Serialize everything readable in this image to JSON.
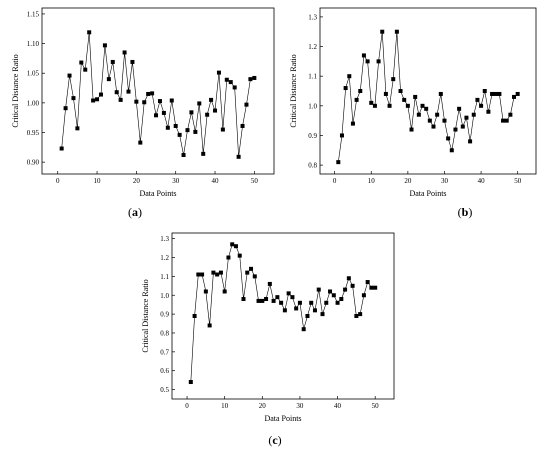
{
  "chart_data": [
    {
      "type": "line",
      "panel_label": "a",
      "xlabel": "Data Points",
      "ylabel": "Critical Distance Ratio",
      "xlim": [
        -4,
        55
      ],
      "ylim": [
        0.88,
        1.16
      ],
      "xticks": [
        0,
        10,
        20,
        30,
        40,
        50
      ],
      "yticks": [
        0.9,
        0.95,
        1.0,
        1.05,
        1.1,
        1.15
      ],
      "ytick_labels": [
        "0.90",
        "0.95",
        "1.00",
        "1.05",
        "1.10",
        "1.15"
      ],
      "marker": "square",
      "x": [
        1,
        2,
        3,
        4,
        5,
        6,
        7,
        8,
        9,
        10,
        11,
        12,
        13,
        14,
        15,
        16,
        17,
        18,
        19,
        20,
        21,
        22,
        23,
        24,
        25,
        26,
        27,
        28,
        29,
        30,
        31,
        32,
        33,
        34,
        35,
        36,
        37,
        38,
        39,
        40,
        41,
        42,
        43,
        44,
        45,
        46,
        47,
        48,
        49,
        50
      ],
      "y": [
        0.923,
        0.991,
        1.046,
        1.008,
        0.957,
        1.068,
        1.056,
        1.119,
        1.004,
        1.006,
        1.014,
        1.097,
        1.04,
        1.069,
        1.018,
        1.005,
        1.085,
        1.019,
        1.069,
        1.002,
        0.933,
        1.001,
        1.015,
        1.016,
        0.979,
        1.003,
        0.983,
        0.958,
        1.004,
        0.961,
        0.946,
        0.912,
        0.954,
        0.984,
        0.951,
        0.999,
        0.914,
        0.98,
        1.005,
        0.987,
        1.051,
        0.955,
        1.039,
        1.035,
        1.026,
        0.909,
        0.961,
        0.997,
        1.04,
        1.042
      ]
    },
    {
      "type": "line",
      "panel_label": "b",
      "xlabel": "Data Points",
      "ylabel": "Critical Distance Ratio",
      "xlim": [
        -4,
        55
      ],
      "ylim": [
        0.77,
        1.33
      ],
      "xticks": [
        0,
        10,
        20,
        30,
        40,
        50
      ],
      "yticks": [
        0.8,
        0.9,
        1.0,
        1.1,
        1.2,
        1.3
      ],
      "ytick_labels": [
        "0.8",
        "0.9",
        "1.0",
        "1.1",
        "1.2",
        "1.3"
      ],
      "marker": "square",
      "x": [
        1,
        2,
        3,
        4,
        5,
        6,
        7,
        8,
        9,
        10,
        11,
        12,
        13,
        14,
        15,
        16,
        17,
        18,
        19,
        20,
        21,
        22,
        23,
        24,
        25,
        26,
        27,
        28,
        29,
        30,
        31,
        32,
        33,
        34,
        35,
        36,
        37,
        38,
        39,
        40,
        41,
        42,
        43,
        44,
        45,
        46,
        47,
        48,
        49,
        50
      ],
      "y": [
        0.81,
        0.9,
        1.06,
        1.1,
        0.94,
        1.02,
        1.05,
        1.17,
        1.15,
        1.01,
        1.0,
        1.15,
        1.25,
        1.04,
        1.0,
        1.09,
        1.25,
        1.05,
        1.02,
        1.0,
        0.92,
        1.03,
        0.97,
        1.0,
        0.99,
        0.95,
        0.93,
        0.97,
        1.04,
        0.95,
        0.89,
        0.85,
        0.92,
        0.99,
        0.93,
        0.96,
        0.88,
        0.97,
        1.02,
        1.0,
        1.05,
        0.98,
        1.04,
        1.04,
        1.04,
        0.95,
        0.95,
        0.97,
        1.03,
        1.04
      ]
    },
    {
      "type": "line",
      "panel_label": "c",
      "xlabel": "Data Points",
      "ylabel": "Critical Distance Ratio",
      "xlim": [
        -4,
        55
      ],
      "ylim": [
        0.45,
        1.33
      ],
      "xticks": [
        0,
        10,
        20,
        30,
        40,
        50
      ],
      "yticks": [
        0.5,
        0.6,
        0.7,
        0.8,
        0.9,
        1.0,
        1.1,
        1.2,
        1.3
      ],
      "ytick_labels": [
        "0.5",
        "0.6",
        "0.7",
        "0.8",
        "0.9",
        "1.0",
        "1.1",
        "1.2",
        "1.3"
      ],
      "marker": "square",
      "x": [
        1,
        2,
        3,
        4,
        5,
        6,
        7,
        8,
        9,
        10,
        11,
        12,
        13,
        14,
        15,
        16,
        17,
        18,
        19,
        20,
        21,
        22,
        23,
        24,
        25,
        26,
        27,
        28,
        29,
        30,
        31,
        32,
        33,
        34,
        35,
        36,
        37,
        38,
        39,
        40,
        41,
        42,
        43,
        44,
        45,
        46,
        47,
        48,
        49,
        50
      ],
      "y": [
        0.54,
        0.89,
        1.11,
        1.11,
        1.02,
        0.84,
        1.12,
        1.11,
        1.12,
        1.02,
        1.2,
        1.27,
        1.26,
        1.21,
        0.98,
        1.12,
        1.14,
        1.1,
        0.97,
        0.97,
        0.98,
        1.06,
        0.97,
        0.99,
        0.96,
        0.92,
        1.01,
        0.99,
        0.93,
        0.96,
        0.82,
        0.89,
        0.96,
        0.92,
        1.03,
        0.9,
        0.96,
        1.02,
        1.0,
        0.96,
        0.98,
        1.03,
        1.09,
        1.05,
        0.89,
        0.9,
        1.0,
        1.07,
        1.04,
        1.04
      ]
    }
  ]
}
